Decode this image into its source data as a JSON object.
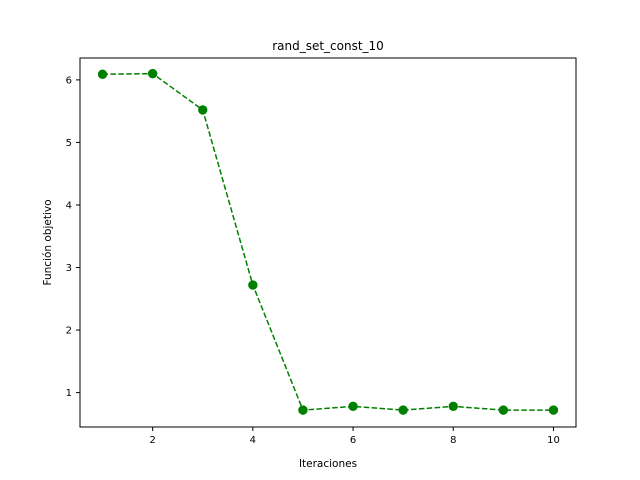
{
  "chart_data": {
    "type": "line",
    "title": "rand_set_const_10",
    "xlabel": "Iteraciones",
    "ylabel": "Función objetivo",
    "xlim": [
      0.55,
      10.45
    ],
    "ylim": [
      0.45,
      6.35
    ],
    "xticks": [
      2,
      4,
      6,
      8,
      10
    ],
    "yticks": [
      1,
      2,
      3,
      4,
      5,
      6
    ],
    "grid": false,
    "series": [
      {
        "color": "#008000",
        "line_style": "dashed",
        "marker": "circle",
        "x": [
          1,
          2,
          3,
          4,
          5,
          6,
          7,
          8,
          9,
          10
        ],
        "y": [
          6.09,
          6.1,
          5.52,
          2.72,
          0.72,
          0.78,
          0.72,
          0.78,
          0.72,
          0.72
        ]
      }
    ]
  }
}
